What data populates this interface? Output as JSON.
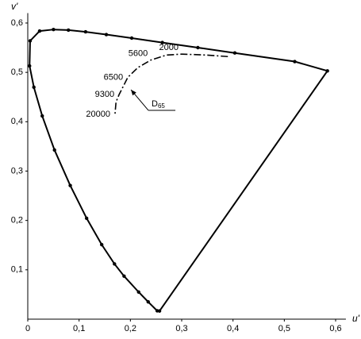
{
  "chart_data": {
    "type": "line",
    "xlabel": "u'",
    "ylabel": "v'",
    "xlim": [
      0,
      0.62
    ],
    "ylim": [
      0,
      0.62
    ],
    "xticks": [
      {
        "value": 0,
        "label": "0"
      },
      {
        "value": 0.1,
        "label": "0,1"
      },
      {
        "value": 0.2,
        "label": "0,2"
      },
      {
        "value": 0.3,
        "label": "0,3"
      },
      {
        "value": 0.4,
        "label": "0,4"
      },
      {
        "value": 0.5,
        "label": "0,5"
      },
      {
        "value": 0.6,
        "label": "0,6"
      }
    ],
    "yticks": [
      {
        "value": 0.1,
        "label": "0,1"
      },
      {
        "value": 0.2,
        "label": "0,2"
      },
      {
        "value": 0.3,
        "label": "0,3"
      },
      {
        "value": 0.4,
        "label": "0,4"
      },
      {
        "value": 0.5,
        "label": "0,5"
      },
      {
        "value": 0.6,
        "label": "0,6"
      }
    ],
    "series": [
      {
        "color": "#000000",
        "markers": true,
        "closed": true,
        "x": [
          0.2568,
          0.2522,
          0.2347,
          0.2161,
          0.1877,
          0.169,
          0.1441,
          0.1147,
          0.0828,
          0.0521,
          0.0282,
          0.0119,
          0.0035,
          0.0046,
          0.0231,
          0.0501,
          0.0792,
          0.1127,
          0.1531,
          0.2026,
          0.2623,
          0.3315,
          0.4035,
          0.5203,
          0.584
        ],
        "values": [
          0.0165,
          0.0169,
          0.035,
          0.0549,
          0.0871,
          0.1119,
          0.151,
          0.2044,
          0.2708,
          0.3427,
          0.4117,
          0.4699,
          0.5131,
          0.5638,
          0.5837,
          0.5868,
          0.5856,
          0.5821,
          0.5766,
          0.5694,
          0.5604,
          0.5501,
          0.5393,
          0.5219,
          0.503
        ]
      },
      {
        "color": "#000000",
        "dashed": true,
        "x": [
          0.39,
          0.35,
          0.3,
          0.27,
          0.24,
          0.215,
          0.195,
          0.178,
          0.172,
          0.17
        ],
        "values": [
          0.532,
          0.535,
          0.537,
          0.535,
          0.525,
          0.51,
          0.49,
          0.455,
          0.44,
          0.415
        ],
        "point_labels": [
          null,
          null,
          2000,
          null,
          5600,
          null,
          6500,
          9300,
          null,
          20000
        ]
      }
    ],
    "annotations": [
      {
        "text": "D",
        "subscript": "65",
        "x": 0.198,
        "y": 0.468
      }
    ]
  }
}
